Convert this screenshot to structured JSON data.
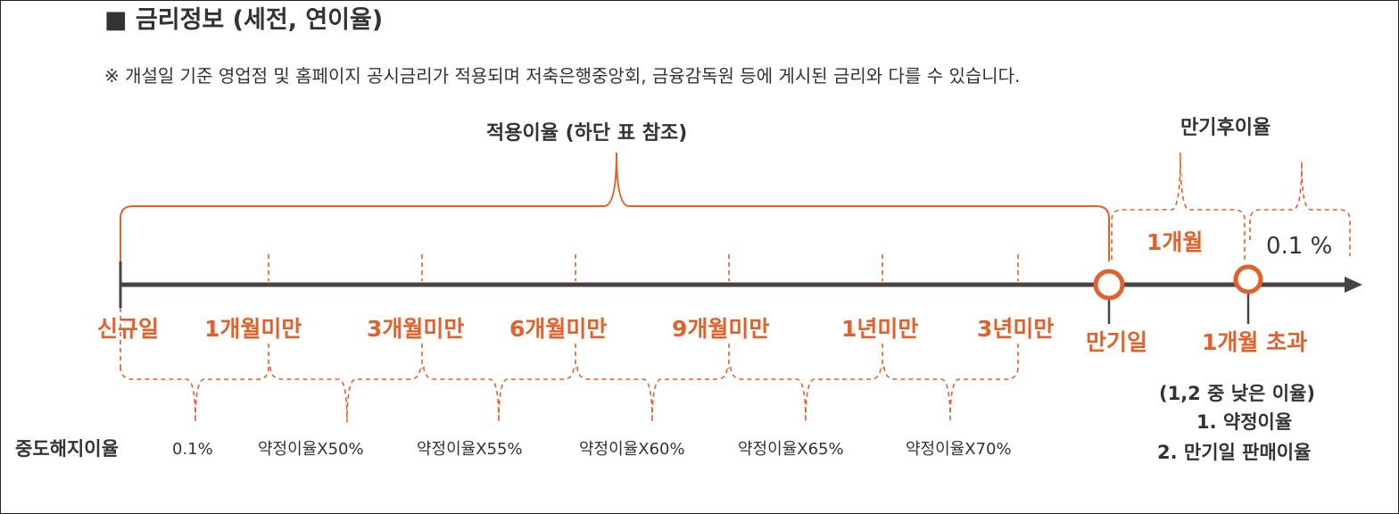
{
  "title": "■ 금리정보 (세전, 연이율)",
  "note": "※ 개설일 기준 영업점 및 홈페이지 공시금리가 적용되며 저축은행중앙회, 금융감독원 등에 게시된 금리와 다를 수 있습니다.",
  "braces": {
    "applied_rate": "적용이율 (하단 표 참조)",
    "post_maturity": "만기후이율"
  },
  "post_maturity": {
    "one_month": "1개월",
    "rate": "0.1 %"
  },
  "stages": [
    "신규일",
    "1개월미만",
    "3개월미만",
    "6개월미만",
    "9개월미만",
    "1년미만",
    "3년미만"
  ],
  "maturity_label": "만기일",
  "over_month_label": "1개월 초과",
  "early_termination": {
    "label": "중도해지이율",
    "first_rate": "0.1%",
    "rates": [
      "약정이율X50%",
      "약정이율X55%",
      "약정이율X60%",
      "약정이율X65%",
      "약정이율X70%"
    ]
  },
  "over_month_rules": {
    "header": "(1,2 중 낮은 이율)",
    "rule1": "1. 약정이율",
    "rule2": "2. 만기일 판매이율"
  },
  "colors": {
    "accent": "#e0622a",
    "axis": "#4a4244",
    "text": "#333333"
  }
}
